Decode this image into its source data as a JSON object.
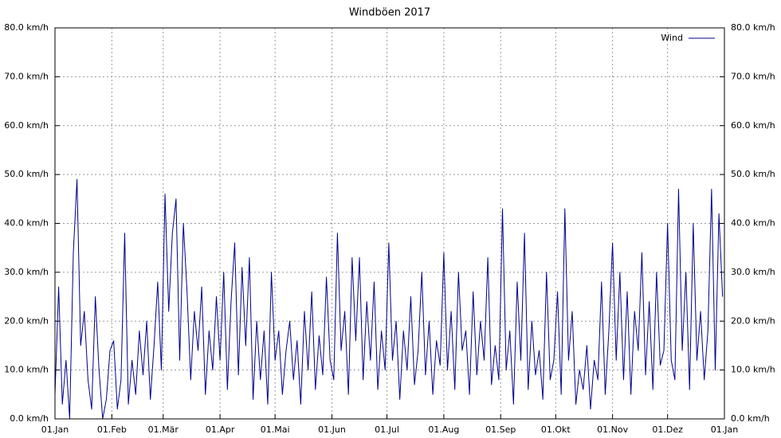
{
  "chart_data": {
    "type": "line",
    "title": "Windböen 2017",
    "x": [
      0,
      2,
      4,
      6,
      8,
      10,
      12,
      14,
      16,
      18,
      20,
      22,
      24,
      26,
      28,
      30,
      32,
      34,
      36,
      38,
      40,
      42,
      44,
      46,
      48,
      50,
      52,
      54,
      56,
      58,
      60,
      62,
      64,
      66,
      68,
      70,
      72,
      74,
      76,
      78,
      80,
      82,
      84,
      86,
      88,
      90,
      92,
      94,
      96,
      98,
      100,
      102,
      104,
      106,
      108,
      110,
      112,
      114,
      116,
      118,
      120,
      122,
      124,
      126,
      128,
      130,
      132,
      134,
      136,
      138,
      140,
      142,
      144,
      146,
      148,
      150,
      152,
      154,
      156,
      158,
      160,
      162,
      164,
      166,
      168,
      170,
      172,
      174,
      176,
      178,
      180,
      182,
      184,
      186,
      188,
      190,
      192,
      194,
      196,
      198,
      200,
      202,
      204,
      206,
      208,
      210,
      212,
      214,
      216,
      218,
      220,
      222,
      224,
      226,
      228,
      230,
      232,
      234,
      236,
      238,
      240,
      242,
      244,
      246,
      248,
      250,
      252,
      254,
      256,
      258,
      260,
      262,
      264,
      266,
      268,
      270,
      272,
      274,
      276,
      278,
      280,
      282,
      284,
      286,
      288,
      290,
      292,
      294,
      296,
      298,
      300,
      302,
      304,
      306,
      308,
      310,
      312,
      314,
      316,
      318,
      320,
      322,
      324,
      326,
      328,
      330,
      332,
      334,
      336,
      338,
      340,
      342,
      344,
      346,
      348,
      350,
      352,
      354,
      356,
      358,
      360,
      362,
      364
    ],
    "series": [
      {
        "name": "Wind",
        "color": "#00008b",
        "values": [
          5,
          27,
          3,
          12,
          0,
          34,
          49,
          15,
          22,
          8,
          2,
          25,
          10,
          0,
          4,
          14,
          16,
          2,
          8,
          38,
          3,
          12,
          5,
          18,
          9,
          20,
          4,
          15,
          28,
          10,
          46,
          22,
          38,
          45,
          12,
          40,
          26,
          8,
          22,
          14,
          27,
          5,
          18,
          10,
          25,
          12,
          30,
          6,
          24,
          36,
          9,
          31,
          15,
          33,
          4,
          20,
          8,
          18,
          3,
          30,
          12,
          18,
          5,
          14,
          20,
          8,
          16,
          3,
          22,
          10,
          26,
          6,
          17,
          9,
          29,
          12,
          8,
          38,
          14,
          22,
          5,
          33,
          16,
          33,
          8,
          24,
          12,
          28,
          6,
          18,
          10,
          36,
          12,
          20,
          4,
          18,
          10,
          25,
          7,
          14,
          30,
          9,
          20,
          5,
          16,
          11,
          34,
          10,
          22,
          6,
          30,
          14,
          18,
          5,
          26,
          9,
          20,
          12,
          33,
          7,
          15,
          8,
          43,
          10,
          18,
          3,
          28,
          12,
          38,
          6,
          20,
          9,
          14,
          4,
          30,
          8,
          12,
          26,
          5,
          43,
          12,
          22,
          3,
          10,
          6,
          15,
          2,
          12,
          8,
          28,
          5,
          18,
          36,
          12,
          30,
          8,
          26,
          5,
          22,
          14,
          34,
          9,
          24,
          6,
          30,
          11,
          14,
          40,
          12,
          8,
          47,
          14,
          30,
          6,
          40,
          12,
          22,
          8,
          18,
          47,
          10,
          42,
          25
        ]
      }
    ],
    "xlim": [
      0,
      365
    ],
    "xticks": [
      {
        "value": 0,
        "label": "01.Jan"
      },
      {
        "value": 31,
        "label": "01.Feb"
      },
      {
        "value": 59,
        "label": "01.Mär"
      },
      {
        "value": 90,
        "label": "01.Apr"
      },
      {
        "value": 120,
        "label": "01.Mai"
      },
      {
        "value": 151,
        "label": "01.Jun"
      },
      {
        "value": 181,
        "label": "01.Jul"
      },
      {
        "value": 212,
        "label": "01.Aug"
      },
      {
        "value": 243,
        "label": "01.Sep"
      },
      {
        "value": 273,
        "label": "01.Okt"
      },
      {
        "value": 304,
        "label": "01.Nov"
      },
      {
        "value": 334,
        "label": "01.Dez"
      },
      {
        "value": 365,
        "label": "01.Jan"
      }
    ],
    "ylim": [
      0,
      80
    ],
    "yticks": [
      {
        "value": 0,
        "label": "0.0 km/h"
      },
      {
        "value": 10,
        "label": "10.0 km/h"
      },
      {
        "value": 20,
        "label": "20.0 km/h"
      },
      {
        "value": 30,
        "label": "30.0 km/h"
      },
      {
        "value": 40,
        "label": "40.0 km/h"
      },
      {
        "value": 50,
        "label": "50.0 km/h"
      },
      {
        "value": 60,
        "label": "60.0 km/h"
      },
      {
        "value": 70,
        "label": "70.0 km/h"
      },
      {
        "value": 80,
        "label": "80.0 km/h"
      }
    ],
    "y2lim": [
      0,
      80
    ],
    "y2ticks": [
      {
        "value": 0,
        "label": "0.0 km/h"
      },
      {
        "value": 10,
        "label": "10.0 km/h"
      },
      {
        "value": 20,
        "label": "20.0 km/h"
      },
      {
        "value": 30,
        "label": "30.0 km/h"
      },
      {
        "value": 40,
        "label": "40.0 km/h"
      },
      {
        "value": 50,
        "label": "50.0 km/h"
      },
      {
        "value": 60,
        "label": "60.0 km/h"
      },
      {
        "value": 70,
        "label": "70.0 km/h"
      },
      {
        "value": 80,
        "label": "80.0 km/h"
      }
    ],
    "grid": true,
    "legend": "top-right"
  }
}
